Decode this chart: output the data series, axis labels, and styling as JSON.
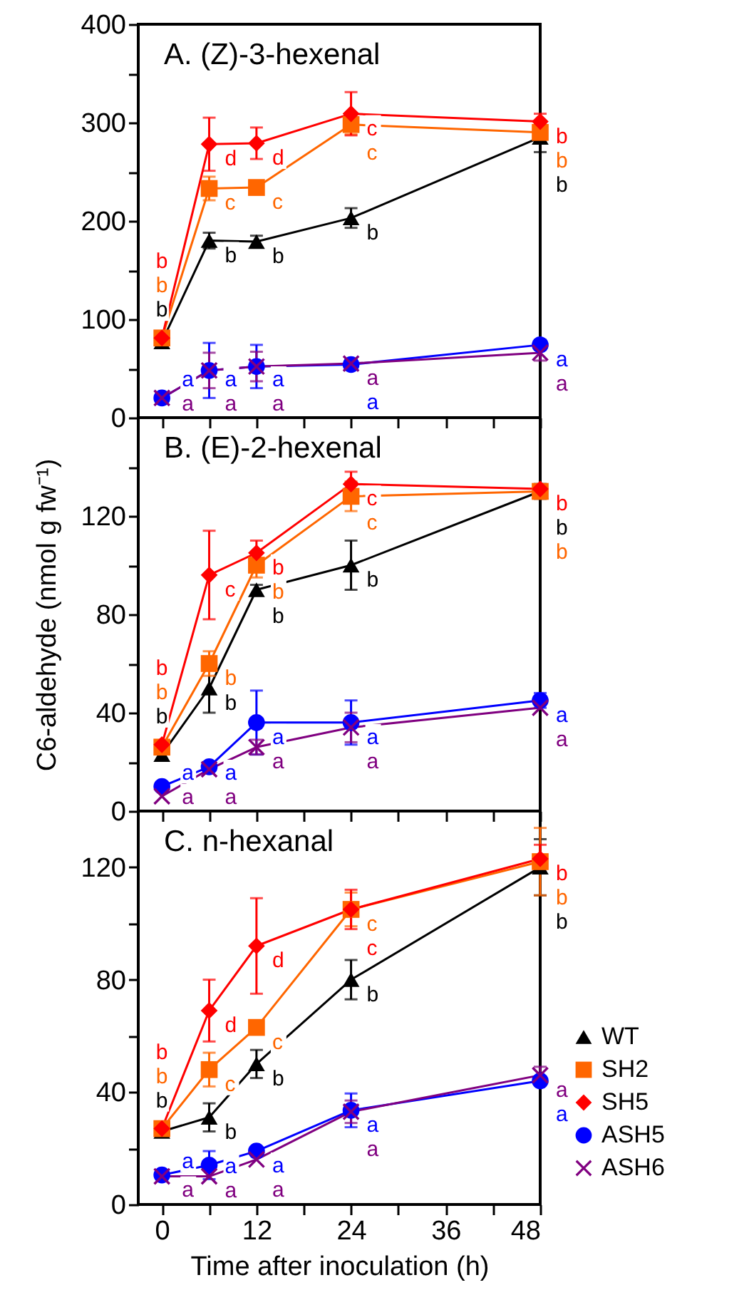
{
  "chart_data": [
    {
      "type": "line",
      "title": "A. (Z)-3-hexenal",
      "x": [
        0,
        6,
        12,
        24,
        48
      ],
      "xlim": [
        -3,
        48
      ],
      "xticks": [
        0,
        {
          "value": 6,
          "label": null
        },
        12,
        {
          "value": 18,
          "label": null
        },
        24,
        {
          "value": 30,
          "label": null
        },
        36,
        {
          "value": 42,
          "label": null
        },
        48
      ],
      "ylim": [
        0,
        400
      ],
      "yticks": [
        0,
        {
          "value": 50,
          "label": null
        },
        100,
        {
          "value": 150,
          "label": null
        },
        200,
        {
          "value": 250,
          "label": null
        },
        300,
        {
          "value": 350,
          "label": null
        },
        400
      ],
      "tick_labels": "y",
      "series": [
        {
          "color": "#000000",
          "marker": "triangle",
          "values": [
            77,
            180,
            179,
            203,
            285
          ],
          "errors": [
            null,
            8,
            6,
            10,
            15
          ],
          "value_labels": [
            "b",
            "b",
            "b",
            "b",
            "b"
          ]
        },
        {
          "color": "#ff6600",
          "marker": "square",
          "values": [
            81,
            233,
            234,
            298,
            290
          ],
          "errors": [
            null,
            12,
            null,
            10,
            8
          ],
          "value_labels": [
            "b",
            "c",
            "c",
            "c",
            "b"
          ]
        },
        {
          "color": "#ff0000",
          "marker": "diamond",
          "values": [
            81,
            278,
            279,
            309,
            301
          ],
          "errors": [
            null,
            27,
            16,
            22,
            8
          ],
          "value_labels": [
            "b",
            "d",
            "d",
            "c",
            "b"
          ]
        },
        {
          "color": "#0000ff",
          "marker": "circle",
          "values": [
            20,
            48,
            52,
            54,
            74
          ],
          "errors": [
            null,
            28,
            22,
            5,
            5
          ],
          "value_labels": [
            "a",
            "a",
            "a",
            "a",
            "a"
          ]
        },
        {
          "color": "#800080",
          "marker": "cross",
          "values": [
            20,
            48,
            52,
            55,
            66
          ],
          "errors": [
            null,
            18,
            15,
            null,
            8
          ],
          "value_labels": [
            "a",
            "a",
            "a",
            "a",
            "a"
          ]
        }
      ]
    },
    {
      "type": "line",
      "title": "B. (E)-2-hexenal",
      "ylabel": "C6-aldehyde (nmol g fw⁻¹)",
      "x": [
        0,
        6,
        12,
        24,
        48
      ],
      "xlim": [
        -3,
        48
      ],
      "xticks": [
        0,
        {
          "value": 6,
          "label": null
        },
        12,
        {
          "value": 18,
          "label": null
        },
        24,
        {
          "value": 30,
          "label": null
        },
        36,
        {
          "value": 42,
          "label": null
        },
        48
      ],
      "ylim": [
        0,
        160
      ],
      "yticks": [
        0,
        {
          "value": 20,
          "label": null
        },
        40,
        {
          "value": 60,
          "label": null
        },
        80,
        {
          "value": 100,
          "label": null
        },
        120,
        {
          "value": 140,
          "label": null
        }
      ],
      "tick_labels": "y",
      "series": [
        {
          "color": "#000000",
          "marker": "triangle",
          "values": [
            23,
            50,
            90,
            100,
            130
          ],
          "errors": [
            null,
            10,
            2,
            10,
            3
          ],
          "value_labels": [
            "b",
            "b",
            "b",
            "b",
            "b"
          ]
        },
        {
          "color": "#ff6600",
          "marker": "square",
          "values": [
            26,
            60,
            100,
            128,
            130
          ],
          "errors": [
            null,
            5,
            5,
            6,
            null
          ],
          "value_labels": [
            "b",
            "b",
            "b",
            "c",
            "b"
          ]
        },
        {
          "color": "#ff0000",
          "marker": "diamond",
          "values": [
            27,
            96,
            105,
            133,
            131
          ],
          "errors": [
            null,
            18,
            5,
            5,
            null
          ],
          "value_labels": [
            "b",
            "c",
            "b",
            "c",
            "b"
          ]
        },
        {
          "color": "#0000ff",
          "marker": "circle",
          "values": [
            10,
            18,
            36,
            36,
            45
          ],
          "errors": [
            null,
            null,
            13,
            9,
            3
          ],
          "value_labels": [
            "a",
            "a",
            "a",
            "a",
            "a"
          ]
        },
        {
          "color": "#800080",
          "marker": "cross",
          "values": [
            6,
            17,
            26,
            34,
            42
          ],
          "errors": [
            null,
            null,
            3,
            6,
            null
          ],
          "value_labels": [
            "a",
            "a",
            "a",
            "a",
            "a"
          ]
        }
      ]
    },
    {
      "type": "line",
      "title": "C. n-hexanal",
      "xlabel": "Time after inoculation (h)",
      "x": [
        0,
        6,
        12,
        24,
        48
      ],
      "xlim": [
        -3,
        48
      ],
      "xticks": [
        0,
        {
          "value": 6,
          "label": null
        },
        12,
        {
          "value": 18,
          "label": null
        },
        24,
        {
          "value": 30,
          "label": null
        },
        36,
        {
          "value": 42,
          "label": null
        },
        48
      ],
      "ylim": [
        0,
        140
      ],
      "yticks": [
        0,
        {
          "value": 20,
          "label": null
        },
        40,
        {
          "value": 60,
          "label": null
        },
        80,
        {
          "value": 100,
          "label": null
        },
        120
      ],
      "legend": "right",
      "series": [
        {
          "name": "WT",
          "color": "#000000",
          "marker": "triangle",
          "values": [
            26,
            31,
            50,
            80,
            120
          ],
          "errors": [
            null,
            5,
            5,
            7,
            10
          ],
          "value_labels": [
            "b",
            "b",
            "b",
            "b",
            "b"
          ]
        },
        {
          "name": "SH2",
          "color": "#ff6600",
          "marker": "square",
          "values": [
            27,
            48,
            63,
            105,
            122
          ],
          "errors": [
            null,
            6,
            null,
            6,
            12
          ],
          "value_labels": [
            "b",
            "c",
            "c",
            "c",
            "b"
          ]
        },
        {
          "name": "SH5",
          "color": "#ff0000",
          "marker": "diamond",
          "values": [
            27,
            69,
            92,
            105,
            123
          ],
          "errors": [
            null,
            11,
            17,
            7,
            5
          ],
          "value_labels": [
            "b",
            "d",
            "d",
            "c",
            "b"
          ]
        },
        {
          "name": "ASH5",
          "color": "#0000ff",
          "marker": "circle",
          "values": [
            10.5,
            14,
            19,
            33.5,
            44
          ],
          "errors": [
            null,
            5,
            null,
            6,
            null
          ],
          "value_labels": [
            "a",
            "a",
            "a",
            "a",
            "a"
          ]
        },
        {
          "name": "ASH6",
          "color": "#800080",
          "marker": "cross",
          "values": [
            10,
            10,
            16,
            33,
            46
          ],
          "errors": [
            null,
            null,
            null,
            4,
            3
          ],
          "value_labels": [
            "a",
            "a",
            "a",
            "a",
            "a"
          ]
        }
      ]
    }
  ]
}
